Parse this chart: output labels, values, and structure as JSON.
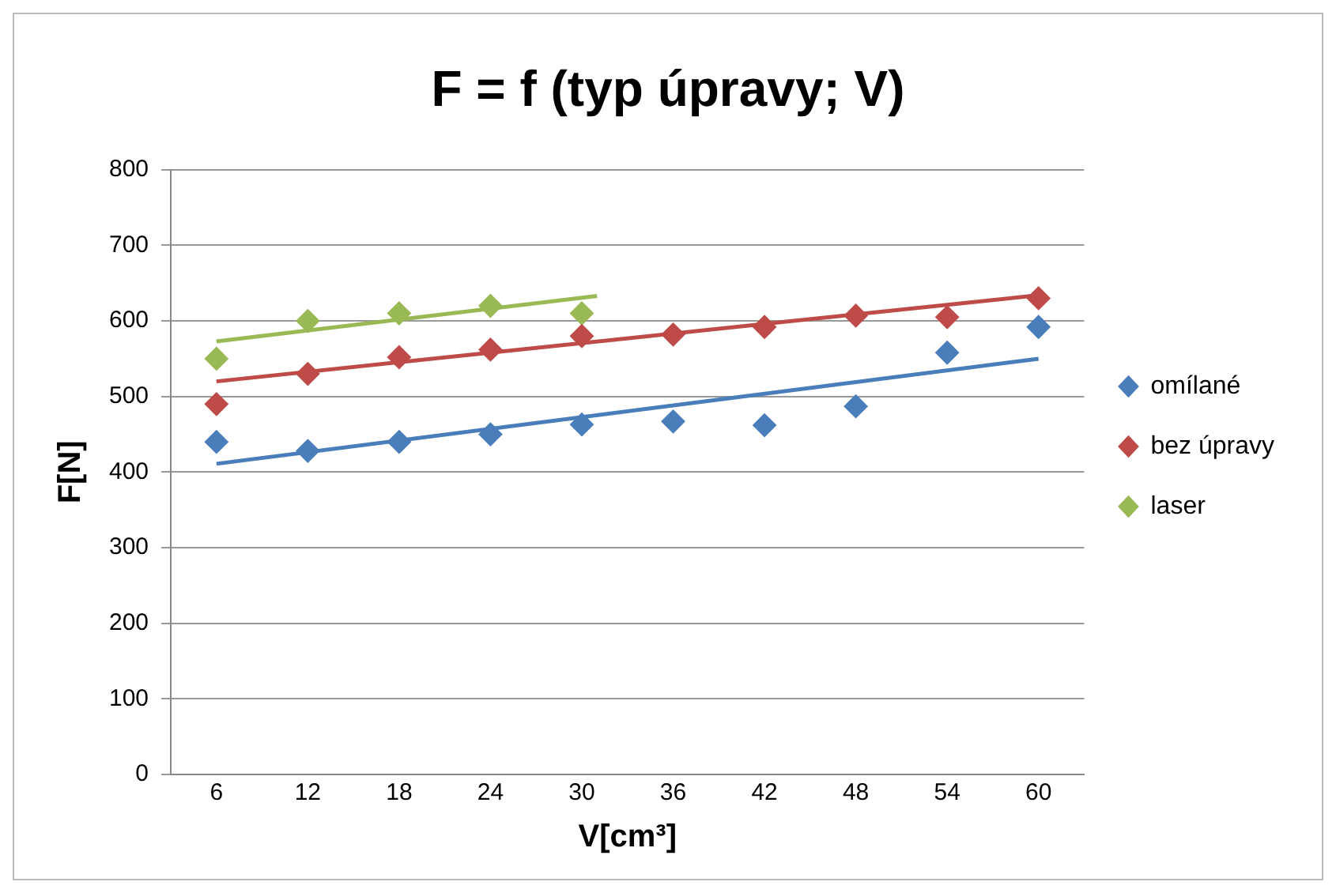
{
  "chart_data": {
    "type": "scatter",
    "title": "F = f (typ úpravy; V)",
    "xlabel": "V[cm³]",
    "ylabel": "F[N]",
    "x": [
      6,
      12,
      18,
      24,
      30,
      36,
      42,
      48,
      54,
      60
    ],
    "xlim": [
      3,
      63
    ],
    "xticks": [
      6,
      12,
      18,
      24,
      30,
      36,
      42,
      48,
      54,
      60
    ],
    "ylim": [
      0,
      800
    ],
    "yticks": [
      0,
      100,
      200,
      300,
      400,
      500,
      600,
      700,
      800
    ],
    "grid": "y",
    "legend": "right",
    "marker": "diamond",
    "series": [
      {
        "name": "omílané",
        "color": "#4a7ebb",
        "values": [
          440,
          428,
          440,
          450,
          463,
          467,
          462,
          487,
          558,
          592
        ]
      },
      {
        "name": "bez úpravy",
        "color": "#be4b48",
        "values": [
          490,
          530,
          552,
          562,
          580,
          582,
          592,
          607,
          605,
          630
        ]
      },
      {
        "name": "laser",
        "color": "#98b954",
        "values": [
          550,
          600,
          610,
          620,
          610,
          null,
          null,
          null,
          null,
          null
        ]
      },
      {
        "type": "line",
        "color": "#4a7ebb",
        "x": [
          6,
          60
        ],
        "values": [
          411,
          550
        ],
        "marker": "none"
      },
      {
        "type": "line",
        "color": "#be4b48",
        "x": [
          6,
          60
        ],
        "values": [
          520,
          634
        ],
        "marker": "none"
      },
      {
        "type": "line",
        "color": "#98b954",
        "x": [
          6,
          31
        ],
        "values": [
          573,
          633
        ],
        "marker": "none"
      }
    ]
  }
}
